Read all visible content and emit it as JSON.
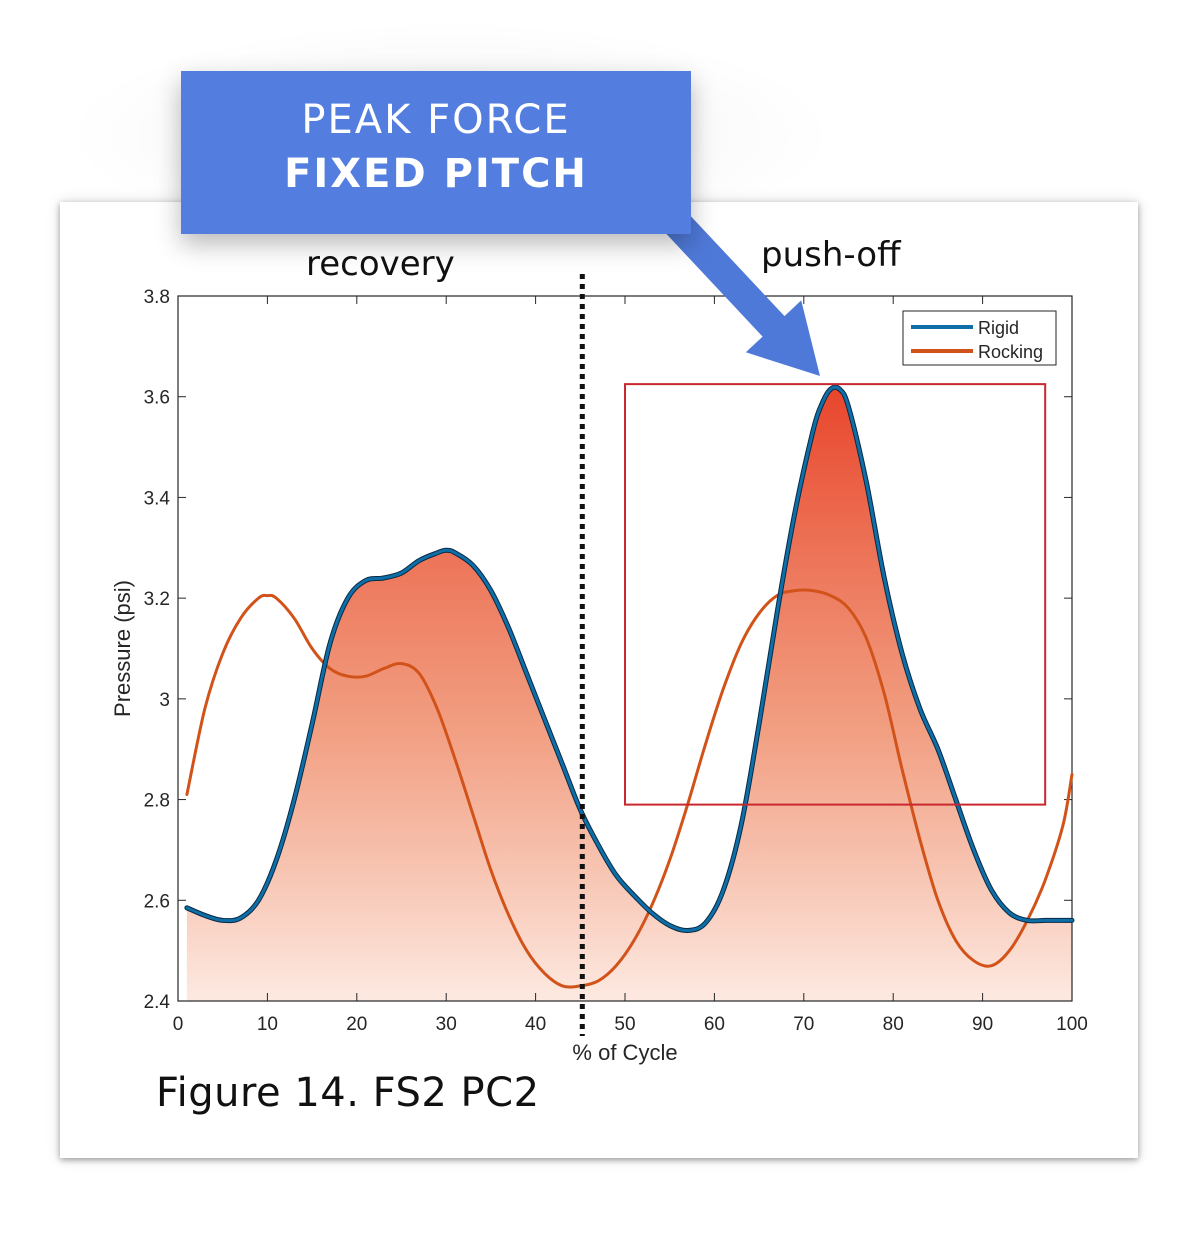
{
  "callout": {
    "line1": "PEAK FORCE",
    "line2": "FIXED PITCH",
    "color": "#537ee0"
  },
  "regions": {
    "left": "recovery",
    "right": "push-off"
  },
  "caption": "Figure 14. FS2 PC2",
  "chart_data": {
    "type": "line",
    "title": "",
    "xlabel": "% of Cycle",
    "ylabel": "Pressure (psi)",
    "xlim": [
      0,
      100
    ],
    "ylim": [
      2.4,
      3.8
    ],
    "xticks": [
      0,
      10,
      20,
      30,
      40,
      50,
      60,
      70,
      80,
      90,
      100
    ],
    "yticks": [
      2.4,
      2.6,
      2.8,
      3,
      3.2,
      3.4,
      3.6,
      3.8
    ],
    "ytick_labels": [
      "2.4",
      "2.6",
      "2.8",
      "3",
      "3.2",
      "3.4",
      "3.6",
      "3.8"
    ],
    "grid": false,
    "legend_position": "top-right",
    "series": [
      {
        "name": "Rigid",
        "color": "#0e6ea8",
        "x": [
          1,
          3,
          5,
          7,
          9,
          11,
          13,
          15,
          17,
          19,
          21,
          23,
          25,
          27,
          29,
          30,
          31,
          33,
          35,
          37,
          39,
          41,
          43,
          45,
          47,
          49,
          51,
          53,
          55,
          57,
          59,
          61,
          63,
          65,
          67,
          69,
          71,
          72,
          73,
          74,
          75,
          77,
          79,
          81,
          83,
          85,
          87,
          89,
          91,
          93,
          95,
          97,
          99,
          100
        ],
        "values": [
          2.585,
          2.57,
          2.56,
          2.565,
          2.6,
          2.68,
          2.8,
          2.95,
          3.11,
          3.2,
          3.235,
          3.24,
          3.25,
          3.275,
          3.29,
          3.295,
          3.29,
          3.265,
          3.215,
          3.14,
          3.05,
          2.96,
          2.87,
          2.78,
          2.71,
          2.65,
          2.61,
          2.575,
          2.55,
          2.54,
          2.555,
          2.62,
          2.75,
          2.95,
          3.17,
          3.37,
          3.53,
          3.585,
          3.615,
          3.615,
          3.58,
          3.43,
          3.24,
          3.09,
          2.98,
          2.9,
          2.8,
          2.7,
          2.62,
          2.575,
          2.56,
          2.56,
          2.56,
          2.56
        ]
      },
      {
        "name": "Rocking",
        "color": "#d2531a",
        "x": [
          1,
          3,
          5,
          7,
          9,
          10,
          11,
          13,
          15,
          17,
          19,
          21,
          23,
          25,
          27,
          29,
          31,
          33,
          35,
          37,
          39,
          41,
          43,
          45,
          47,
          49,
          51,
          53,
          55,
          57,
          59,
          61,
          63,
          65,
          67,
          69,
          71,
          73,
          75,
          77,
          79,
          81,
          83,
          85,
          87,
          89,
          91,
          93,
          95,
          97,
          99,
          100
        ],
        "values": [
          2.81,
          2.98,
          3.09,
          3.16,
          3.2,
          3.205,
          3.2,
          3.16,
          3.1,
          3.06,
          3.045,
          3.045,
          3.06,
          3.07,
          3.05,
          2.98,
          2.88,
          2.77,
          2.66,
          2.57,
          2.5,
          2.455,
          2.43,
          2.43,
          2.44,
          2.47,
          2.52,
          2.59,
          2.68,
          2.79,
          2.91,
          3.02,
          3.11,
          3.17,
          3.205,
          3.215,
          3.215,
          3.205,
          3.18,
          3.12,
          3.01,
          2.86,
          2.72,
          2.6,
          2.52,
          2.48,
          2.47,
          2.5,
          2.56,
          2.64,
          2.75,
          2.85
        ]
      }
    ],
    "highlight_box": {
      "x": [
        50,
        97
      ],
      "y": [
        2.79,
        3.625
      ],
      "color": "#c8282e"
    },
    "divider_x": 45,
    "fill_color": "#e8452b"
  }
}
